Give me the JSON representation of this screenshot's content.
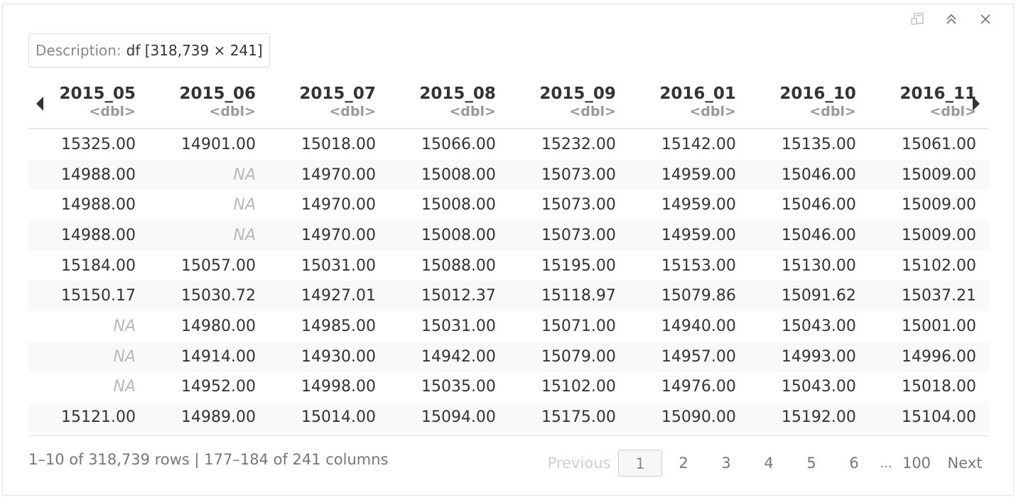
{
  "description": {
    "label": "Description:",
    "value": "df [318,739 × 241]"
  },
  "window_controls": {
    "icons": [
      "popout-icon",
      "collapse-icon",
      "close-icon"
    ]
  },
  "nav": {
    "left_icon": "triangle-left-icon",
    "right_icon": "triangle-right-icon"
  },
  "table": {
    "columns": [
      {
        "name": "2015_05",
        "type": "<dbl>"
      },
      {
        "name": "2015_06",
        "type": "<dbl>"
      },
      {
        "name": "2015_07",
        "type": "<dbl>"
      },
      {
        "name": "2015_08",
        "type": "<dbl>"
      },
      {
        "name": "2015_09",
        "type": "<dbl>"
      },
      {
        "name": "2016_01",
        "type": "<dbl>"
      },
      {
        "name": "2016_10",
        "type": "<dbl>"
      },
      {
        "name": "2016_11",
        "type": "<dbl>"
      }
    ],
    "rows": [
      [
        "15325.00",
        "14901.00",
        "15018.00",
        "15066.00",
        "15232.00",
        "15142.00",
        "15135.00",
        "15061.00"
      ],
      [
        "14988.00",
        "NA",
        "14970.00",
        "15008.00",
        "15073.00",
        "14959.00",
        "15046.00",
        "15009.00"
      ],
      [
        "14988.00",
        "NA",
        "14970.00",
        "15008.00",
        "15073.00",
        "14959.00",
        "15046.00",
        "15009.00"
      ],
      [
        "14988.00",
        "NA",
        "14970.00",
        "15008.00",
        "15073.00",
        "14959.00",
        "15046.00",
        "15009.00"
      ],
      [
        "15184.00",
        "15057.00",
        "15031.00",
        "15088.00",
        "15195.00",
        "15153.00",
        "15130.00",
        "15102.00"
      ],
      [
        "15150.17",
        "15030.72",
        "14927.01",
        "15012.37",
        "15118.97",
        "15079.86",
        "15091.62",
        "15037.21"
      ],
      [
        "NA",
        "14980.00",
        "14985.00",
        "15031.00",
        "15071.00",
        "14940.00",
        "15043.00",
        "15001.00"
      ],
      [
        "NA",
        "14914.00",
        "14930.00",
        "14942.00",
        "15079.00",
        "14957.00",
        "14993.00",
        "14996.00"
      ],
      [
        "NA",
        "14952.00",
        "14998.00",
        "15035.00",
        "15102.00",
        "14976.00",
        "15043.00",
        "15018.00"
      ],
      [
        "15121.00",
        "14989.00",
        "15014.00",
        "15094.00",
        "15175.00",
        "15090.00",
        "15192.00",
        "15104.00"
      ]
    ]
  },
  "footer": {
    "info": "1–10 of 318,739 rows | 177–184 of 241 columns"
  },
  "pager": {
    "previous": "Previous",
    "current": "1",
    "pages": [
      "2",
      "3",
      "4",
      "5",
      "6"
    ],
    "ellipsis": "...",
    "last": "100",
    "next": "Next"
  }
}
